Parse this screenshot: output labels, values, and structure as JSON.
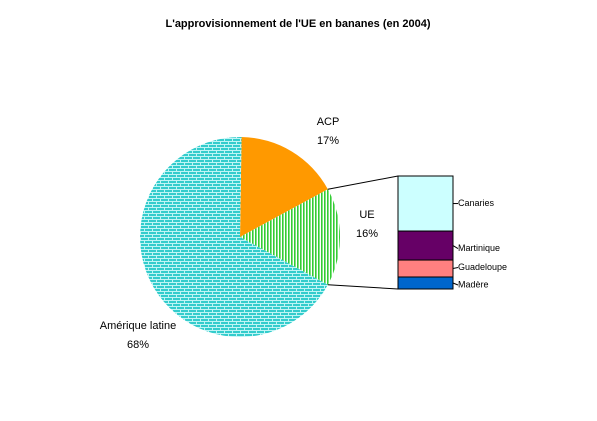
{
  "chart_data": {
    "type": "pie-of-bar",
    "title": "L'approvisionnement de l'UE en bananes (en 2004)",
    "categories": [
      "ACP",
      "UE",
      "Amérique latine"
    ],
    "values": [
      17,
      16,
      68
    ],
    "value_labels": [
      "17%",
      "16%",
      "68%"
    ],
    "colors": [
      "#ff9900",
      "#33cc33",
      "#33cccc"
    ],
    "breakdown": {
      "categories": [
        "Canaries",
        "Martinique",
        "Guadeloupe",
        "Madère"
      ],
      "values": [
        7.8,
        4.1,
        2.4,
        1.7
      ],
      "colors": [
        "#ccffff",
        "#660066",
        "#ff8080",
        "#0066cc"
      ]
    }
  }
}
